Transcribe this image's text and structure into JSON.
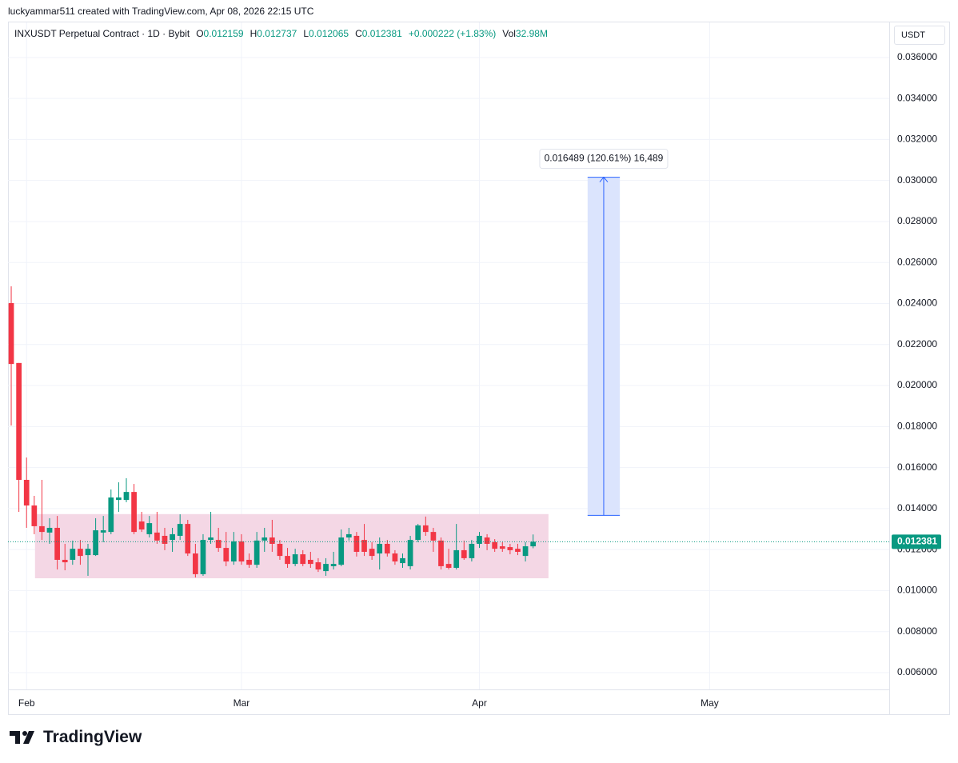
{
  "header": {
    "author_line": "luckyammar511 created with TradingView.com, Apr 08, 2026 22:15 UTC",
    "symbol": "INXUSDT Perpetual Contract · 1D · Bybit",
    "labels": {
      "open": "O",
      "high": "H",
      "low": "L",
      "close": "C",
      "vol": "Vol"
    },
    "change": "+0.000222 (+1.83%)",
    "volume": "32.98M",
    "currency": "USDT",
    "brand": "TradingView"
  },
  "chart_data": {
    "type": "candlestick",
    "up_color": "#089981",
    "down_color": "#f23645",
    "open": [
      0.02402,
      0.0211,
      0.0154,
      0.01415,
      0.01314,
      0.01283,
      0.01306,
      0.0115,
      0.0115,
      0.01204,
      0.01173,
      0.01173,
      0.01283,
      0.01286,
      0.01442,
      0.01442,
      0.01481,
      0.01337,
      0.01275,
      0.01283,
      0.01267,
      0.01247,
      0.01267,
      0.01325,
      0.01181,
      0.0108,
      0.01247,
      0.01247,
      0.01208,
      0.01142,
      0.0124,
      0.0115,
      0.01126,
      0.01244,
      0.01259,
      0.01228,
      0.01169,
      0.0113,
      0.01177,
      0.0115,
      0.01138,
      0.01095,
      0.01119,
      0.01126,
      0.01259,
      0.01267,
      0.01247,
      0.01204,
      0.01181,
      0.01228,
      0.01181,
      0.01134,
      0.01119,
      0.01247,
      0.01318,
      0.01286,
      0.01244,
      0.0113,
      0.01111,
      0.01197,
      0.01158,
      0.01228,
      0.01259,
      0.01236,
      0.01216,
      0.01212,
      0.01204,
      0.01169,
      0.012159
    ],
    "high": [
      0.02484,
      0.0211,
      0.01649,
      0.01462,
      0.0154,
      0.01353,
      0.01364,
      0.01228,
      0.01244,
      0.01247,
      0.01228,
      0.01353,
      0.01364,
      0.01493,
      0.01528,
      0.01548,
      0.0152,
      0.01384,
      0.01364,
      0.01384,
      0.01306,
      0.01306,
      0.01372,
      0.01345,
      0.01228,
      0.01275,
      0.01384,
      0.01306,
      0.01286,
      0.01286,
      0.01275,
      0.01181,
      0.01286,
      0.01306,
      0.01345,
      0.01247,
      0.01208,
      0.01204,
      0.01197,
      0.01189,
      0.01158,
      0.01158,
      0.01189,
      0.01298,
      0.01306,
      0.01286,
      0.01325,
      0.01236,
      0.01259,
      0.01247,
      0.01197,
      0.01181,
      0.01267,
      0.01325,
      0.01361,
      0.01306,
      0.01259,
      0.01204,
      0.01325,
      0.01244,
      0.01247,
      0.01286,
      0.01275,
      0.01251,
      0.01236,
      0.01228,
      0.01228,
      0.01236,
      0.012737
    ],
    "low": [
      0.01805,
      0.01384,
      0.01306,
      0.01275,
      0.01247,
      0.01228,
      0.01103,
      0.01099,
      0.01126,
      0.01126,
      0.01072,
      0.01169,
      0.01236,
      0.01275,
      0.01384,
      0.01431,
      0.01275,
      0.01286,
      0.01259,
      0.01228,
      0.01197,
      0.01189,
      0.01247,
      0.01169,
      0.01064,
      0.01072,
      0.01228,
      0.01189,
      0.01119,
      0.01126,
      0.01126,
      0.01111,
      0.01111,
      0.01189,
      0.01189,
      0.0115,
      0.01111,
      0.01119,
      0.01119,
      0.01111,
      0.01091,
      0.01072,
      0.01103,
      0.01119,
      0.01244,
      0.01166,
      0.01169,
      0.0115,
      0.01103,
      0.01166,
      0.01126,
      0.01111,
      0.01103,
      0.01236,
      0.01267,
      0.01189,
      0.01103,
      0.01103,
      0.01103,
      0.0115,
      0.01142,
      0.01208,
      0.01197,
      0.01189,
      0.01189,
      0.01177,
      0.01173,
      0.01142,
      0.012065
    ],
    "close": [
      0.02105,
      0.0154,
      0.01415,
      0.01314,
      0.01286,
      0.01306,
      0.0115,
      0.01138,
      0.01204,
      0.01169,
      0.01204,
      0.01294,
      0.01294,
      0.01454,
      0.01454,
      0.01481,
      0.01286,
      0.01298,
      0.01329,
      0.01244,
      0.01228,
      0.01275,
      0.01325,
      0.01181,
      0.0108,
      0.01247,
      0.01259,
      0.01208,
      0.01142,
      0.0124,
      0.01142,
      0.01126,
      0.01244,
      0.01259,
      0.01228,
      0.01169,
      0.0113,
      0.01177,
      0.0113,
      0.0113,
      0.01103,
      0.0113,
      0.0113,
      0.01259,
      0.01275,
      0.01189,
      0.01189,
      0.01169,
      0.01228,
      0.01181,
      0.01142,
      0.01158,
      0.01247,
      0.01318,
      0.01286,
      0.01244,
      0.01119,
      0.01111,
      0.01197,
      0.01158,
      0.01228,
      0.01267,
      0.01228,
      0.01204,
      0.01204,
      0.01197,
      0.01189,
      0.01216,
      0.012381
    ],
    "xlim": [
      -0.42,
      114.4
    ],
    "xticks": [
      {
        "value": 2,
        "label": "Feb"
      },
      {
        "value": 30,
        "label": "Mar"
      },
      {
        "value": 61,
        "label": "Apr"
      },
      {
        "value": 91,
        "label": "May"
      }
    ],
    "ylim": [
      0.00518,
      0.03771
    ],
    "yticks": [
      {
        "value": 0.006,
        "label": "0.006000"
      },
      {
        "value": 0.008,
        "label": "0.008000"
      },
      {
        "value": 0.01,
        "label": "0.010000"
      },
      {
        "value": 0.012,
        "label": "0.012000"
      },
      {
        "value": 0.014,
        "label": "0.014000"
      },
      {
        "value": 0.016,
        "label": "0.016000"
      },
      {
        "value": 0.018,
        "label": "0.018000"
      },
      {
        "value": 0.02,
        "label": "0.020000"
      },
      {
        "value": 0.022,
        "label": "0.022000"
      },
      {
        "value": 0.024,
        "label": "0.024000"
      },
      {
        "value": 0.026,
        "label": "0.026000"
      },
      {
        "value": 0.028,
        "label": "0.028000"
      },
      {
        "value": 0.03,
        "label": "0.030000"
      },
      {
        "value": 0.032,
        "label": "0.032000"
      },
      {
        "value": 0.034,
        "label": "0.034000"
      },
      {
        "value": 0.036,
        "label": "0.036000"
      }
    ],
    "grid": true,
    "zone": {
      "x": [
        3.1,
        70
      ],
      "y": [
        0.0106,
        0.01373
      ],
      "color": "#f3d3e2"
    },
    "measure": {
      "x": [
        75.1,
        79.3
      ],
      "y": [
        0.01367,
        0.03016
      ],
      "color": "#dbe4fd",
      "label": "0.016489 (120.61%) 16,489"
    }
  }
}
